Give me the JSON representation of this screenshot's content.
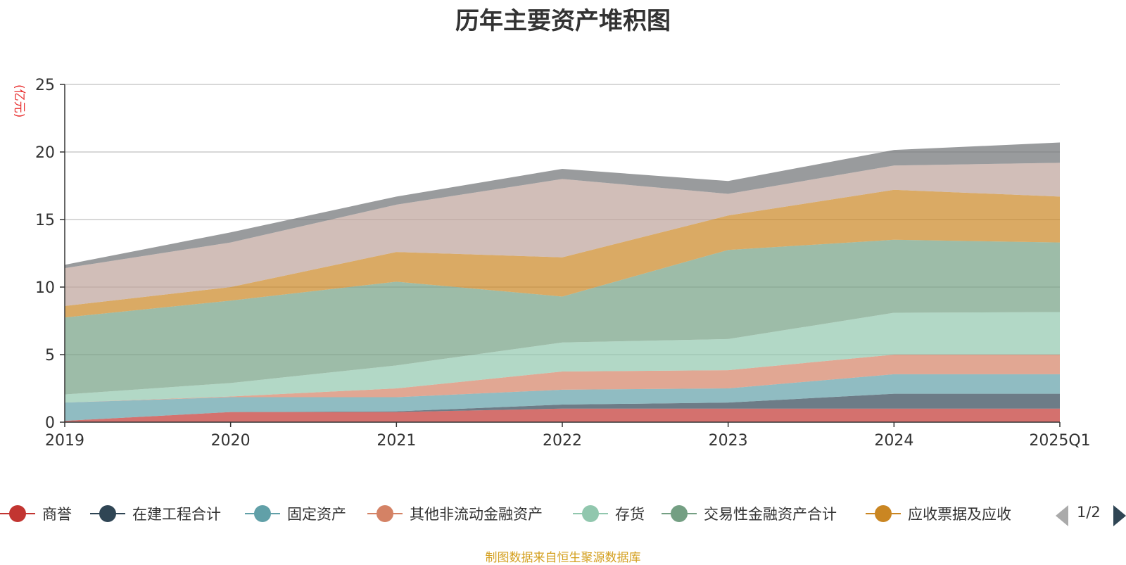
{
  "chart_data": {
    "type": "area",
    "stacked": true,
    "title": "历年主要资产堆积图",
    "ylabel": "(亿元)",
    "categories": [
      "2019",
      "2020",
      "2021",
      "2022",
      "2023",
      "2024",
      "2025Q1"
    ],
    "ylim": [
      0,
      25
    ],
    "yticks": [
      0,
      5,
      10,
      15,
      20,
      25
    ],
    "grid": true,
    "series": [
      {
        "name": "商誉",
        "color": "#c23531",
        "values": [
          0.1,
          0.75,
          0.75,
          1.0,
          1.0,
          1.0,
          1.0
        ]
      },
      {
        "name": "在建工程合计",
        "color": "#2f4554",
        "values": [
          0.0,
          0.0,
          0.05,
          0.3,
          0.45,
          1.1,
          1.1
        ]
      },
      {
        "name": "固定资产",
        "color": "#61a0a8",
        "values": [
          1.35,
          1.1,
          1.05,
          1.1,
          1.05,
          1.45,
          1.45
        ]
      },
      {
        "name": "其他非流动金融资产",
        "color": "#d48265",
        "values": [
          0.0,
          0.05,
          0.65,
          1.35,
          1.35,
          1.45,
          1.45
        ]
      },
      {
        "name": "存货",
        "color": "#91c7ae",
        "values": [
          0.6,
          1.0,
          1.7,
          2.15,
          2.3,
          3.1,
          3.15
        ]
      },
      {
        "name": "交易性金融资产合计",
        "color": "#749f83",
        "values": [
          5.7,
          6.1,
          6.2,
          3.4,
          6.6,
          5.4,
          5.15
        ]
      },
      {
        "name": "应收票据及应收",
        "color": "#ca8622",
        "values": [
          0.85,
          1.0,
          2.2,
          2.9,
          2.55,
          3.7,
          3.4
        ]
      },
      {
        "name": "",
        "color": "#bda29a",
        "values": [
          2.8,
          3.3,
          3.5,
          5.8,
          1.6,
          1.8,
          2.5
        ]
      },
      {
        "name": "",
        "color": "#6e7074",
        "values": [
          0.25,
          0.75,
          0.6,
          0.75,
          0.95,
          1.15,
          1.5
        ]
      }
    ]
  },
  "legend": {
    "items": [
      "商誉",
      "在建工程合计",
      "固定资产",
      "其他非流动金融资产",
      "存货",
      "交易性金融资产合计",
      "应收票据及应收"
    ],
    "page": "1/2"
  },
  "footer": {
    "source": "制图数据来自恒生聚源数据库"
  }
}
